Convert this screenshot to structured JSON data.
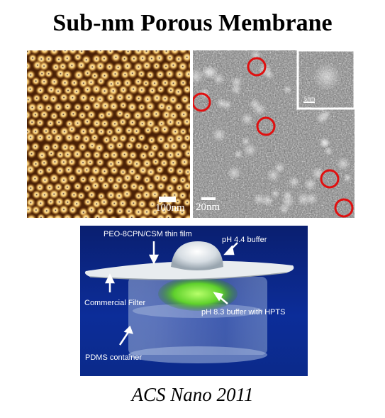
{
  "title": "Sub-nm Porous Membrane",
  "afm_panel": {
    "scale_bar_label": "100nm"
  },
  "tem_panel": {
    "scale_bar_label": "20nm",
    "inset_scale_label": "5nm"
  },
  "photo_panel": {
    "labels": {
      "film": "PEO-8CPN/CSM thin film",
      "buffer_top": "pH 4.4 buffer",
      "filter": "Commercial Filter",
      "buffer_bottom": "pH 8.3 buffer with HPTS",
      "container": "PDMS container"
    }
  },
  "citation": "ACS Nano 2011",
  "colors": {
    "highlight_circle": "#e01010",
    "photo_background": "#0b2a8a",
    "fluorescent_liquid": "#5fd12c"
  }
}
